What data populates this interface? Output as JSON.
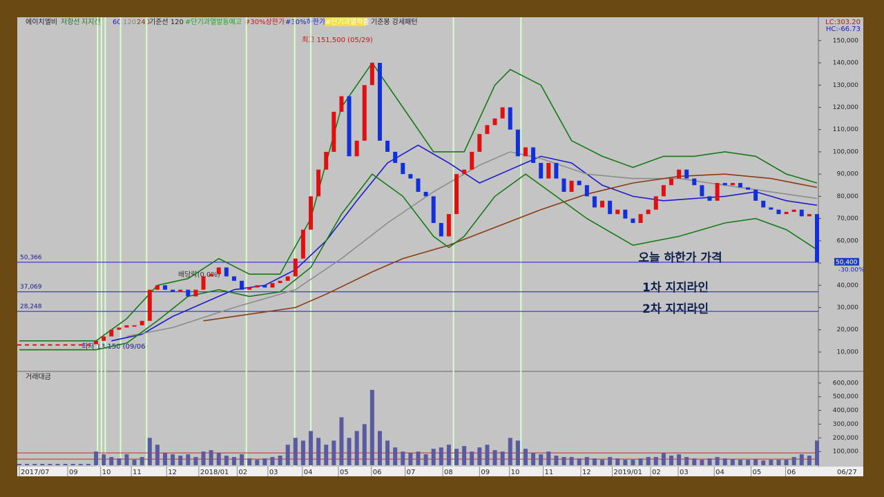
{
  "legend": [
    {
      "text": "에이치엘비",
      "color": "#222222"
    },
    {
      "text": "저항선",
      "color": "#1a7a1a"
    },
    {
      "text": "지지선",
      "color": "#1a7a1a"
    },
    {
      "text": "60",
      "color": "#1a1acc"
    },
    {
      "text": "120",
      "color": "#888888"
    },
    {
      "text": "240",
      "color": "#8b3a10"
    },
    {
      "text": "기준선 120",
      "color": "#222222"
    },
    {
      "text": "#단기과열발동예고",
      "color": "#1aaa1a"
    },
    {
      "text": "#30%상한가",
      "color": "#cc1111"
    },
    {
      "text": "#30%하한가",
      "color": "#1a1acc"
    },
    {
      "text": "#단기과열적출",
      "color": "#ffffff"
    },
    {
      "text": "기준봉 강세패턴",
      "color": "#222222"
    }
  ],
  "lc": "LC:303.20",
  "hc": "HC:-66.73",
  "annotations": {
    "high": "최고 151,500 (05/29)",
    "low": "최저 13,150 (09/06)",
    "dividend": "배당락(0.0%)",
    "today_limit": "오늘 하한가 가격",
    "support1": "1차 지지라인",
    "support2": "2차 지지라인"
  },
  "volume_title": "거래대금",
  "chart_data": [
    {
      "type": "stock",
      "x": [
        0,
        1,
        2,
        3,
        4,
        5,
        6,
        7,
        8,
        9,
        10,
        11,
        12,
        13,
        14,
        15,
        16,
        17,
        18,
        19,
        20,
        21,
        22,
        23,
        24,
        25,
        26,
        27,
        28,
        29,
        30,
        31,
        32,
        33,
        34,
        35,
        36,
        37,
        38,
        39,
        40,
        41,
        42,
        43,
        44,
        45,
        46,
        47,
        48,
        49,
        50,
        51,
        52,
        53,
        54,
        55,
        56,
        57,
        58,
        59,
        60,
        61,
        62,
        63,
        64,
        65,
        66,
        67,
        68,
        69,
        70,
        71,
        72,
        73,
        74,
        75,
        76,
        77,
        78,
        79,
        80,
        81,
        82,
        83,
        84,
        85,
        86,
        87,
        88,
        89,
        90,
        91,
        92,
        93,
        94,
        95,
        96,
        97,
        98,
        99,
        100,
        101,
        102,
        103,
        104
      ],
      "values": [
        13500,
        13500,
        13500,
        13500,
        13500,
        13500,
        13500,
        13500,
        13500,
        13500,
        15000,
        17000,
        20000,
        21000,
        22000,
        22000,
        24000,
        38000,
        40000,
        38000,
        37000,
        38000,
        35000,
        38000,
        44000,
        45000,
        48000,
        44000,
        42000,
        38000,
        39000,
        40000,
        39000,
        41000,
        42000,
        44000,
        52000,
        65000,
        80000,
        92000,
        100000,
        118000,
        125000,
        98000,
        105000,
        130000,
        140000,
        105000,
        100000,
        95000,
        90000,
        88000,
        82000,
        80000,
        68000,
        62000,
        72000,
        90000,
        92000,
        100000,
        108000,
        112000,
        115000,
        120000,
        110000,
        98000,
        102000,
        95000,
        88000,
        95000,
        88000,
        82000,
        87000,
        85000,
        80000,
        75000,
        78000,
        72000,
        74000,
        70000,
        68000,
        72000,
        74000,
        80000,
        85000,
        88000,
        92000,
        88000,
        85000,
        80000,
        78000,
        86000,
        85000,
        86000,
        84000,
        83000,
        78000,
        75000,
        74000,
        72000,
        73000,
        74000,
        71000,
        72000,
        50400
      ],
      "up_color": "#e01010",
      "down_color": "#1030e0",
      "lines": [
        {
          "name": "60",
          "color": "#1a1acc",
          "x": [
            12,
            16,
            20,
            24,
            28,
            32,
            36,
            40,
            44,
            48,
            52,
            56,
            60,
            64,
            68,
            72,
            76,
            80,
            84,
            88,
            92,
            96,
            100,
            104
          ],
          "values": [
            15000,
            18000,
            26000,
            32000,
            38000,
            40000,
            47000,
            60000,
            78000,
            95000,
            103000,
            95000,
            86000,
            92000,
            98000,
            95000,
            85000,
            80000,
            78000,
            79000,
            80000,
            82000,
            78000,
            76000
          ]
        },
        {
          "name": "120",
          "color": "#8c8c8c",
          "x": [
            14,
            20,
            28,
            36,
            42,
            48,
            54,
            60,
            64,
            68,
            74,
            80,
            86,
            92,
            98,
            104
          ],
          "values": [
            17000,
            21000,
            30000,
            38000,
            52000,
            68000,
            82000,
            94000,
            100000,
            97000,
            90000,
            88000,
            88000,
            85000,
            82000,
            79000
          ]
        },
        {
          "name": "240",
          "color": "#8b3a10",
          "x": [
            24,
            30,
            36,
            40,
            46,
            50,
            56,
            62,
            68,
            74,
            80,
            86,
            92,
            98,
            104
          ],
          "values": [
            24000,
            27000,
            30000,
            36000,
            46000,
            52000,
            58000,
            66000,
            74000,
            81000,
            86000,
            89000,
            90000,
            88000,
            84000
          ]
        },
        {
          "name": "저항선",
          "color": "#137a13",
          "x": [
            0,
            10,
            14,
            18,
            22,
            26,
            30,
            34,
            38,
            42,
            46,
            50,
            54,
            58,
            62,
            64,
            68,
            72,
            76,
            80,
            84,
            88,
            92,
            96,
            100,
            104
          ],
          "values": [
            15000,
            15000,
            25000,
            40000,
            43000,
            52000,
            45000,
            45000,
            70000,
            120000,
            140000,
            120000,
            100000,
            100000,
            130000,
            137000,
            130000,
            105000,
            98000,
            93000,
            98000,
            98000,
            100000,
            98000,
            90000,
            86000
          ]
        },
        {
          "name": "지지선",
          "color": "#137a13",
          "x": [
            0,
            10,
            14,
            18,
            22,
            26,
            30,
            34,
            38,
            42,
            46,
            50,
            54,
            56,
            58,
            62,
            66,
            70,
            74,
            80,
            86,
            92,
            96,
            100,
            104
          ],
          "values": [
            11000,
            11000,
            14000,
            24000,
            35000,
            38000,
            35000,
            37000,
            48000,
            72000,
            90000,
            80000,
            62000,
            57000,
            62000,
            80000,
            90000,
            80000,
            70000,
            58000,
            62000,
            68000,
            70000,
            65000,
            56000
          ]
        }
      ],
      "signals": [
        10.2,
        10.7,
        11.2,
        13.2,
        16.6,
        29.6,
        35.9,
        38,
        56.6,
        65.4
      ],
      "levels": [
        {
          "value": 50366,
          "label": "50,366"
        },
        {
          "value": 37069,
          "label": "37,069"
        },
        {
          "value": 28248,
          "label": "28,248"
        }
      ],
      "last_price": {
        "value": 50400,
        "label": "50,400"
      },
      "last_change": "-30.00%",
      "xlim": [
        0,
        104
      ],
      "xticks": [
        {
          "value": 0,
          "label": "2017/07"
        },
        {
          "value": 6.3,
          "label": "09"
        },
        {
          "value": 10.6,
          "label": "10"
        },
        {
          "value": 14.6,
          "label": "11"
        },
        {
          "value": 19.2,
          "label": "12"
        },
        {
          "value": 23.4,
          "label": "2018/01"
        },
        {
          "value": 28.4,
          "label": "02"
        },
        {
          "value": 32.4,
          "label": "03"
        },
        {
          "value": 36.9,
          "label": "04"
        },
        {
          "value": 41.6,
          "label": "05"
        },
        {
          "value": 45.9,
          "label": "06"
        },
        {
          "value": 50.3,
          "label": "07"
        },
        {
          "value": 55.2,
          "label": "08"
        },
        {
          "value": 60,
          "label": "09"
        },
        {
          "value": 63.9,
          "label": "10"
        },
        {
          "value": 68.3,
          "label": "11"
        },
        {
          "value": 73.2,
          "label": "12"
        },
        {
          "value": 77.3,
          "label": "2019/01"
        },
        {
          "value": 82.3,
          "label": "02"
        },
        {
          "value": 85.9,
          "label": "03"
        },
        {
          "value": 90.6,
          "label": "04"
        },
        {
          "value": 95.4,
          "label": "05"
        },
        {
          "value": 99.9,
          "label": "06"
        }
      ],
      "x_end_label": "06/27",
      "ylim": [
        1600,
        160500
      ],
      "yticks": [
        {
          "value": 10000,
          "label": "10,000"
        },
        {
          "value": 20000,
          "label": "20,000"
        },
        {
          "value": 30000,
          "label": "30,000"
        },
        {
          "value": 40000,
          "label": "40,000"
        },
        {
          "value": 50000,
          "label": "50,000"
        },
        {
          "value": 60000,
          "label": "60,000"
        },
        {
          "value": 70000,
          "label": "70,000"
        },
        {
          "value": 80000,
          "label": "80,000"
        },
        {
          "value": 90000,
          "label": "90,000"
        },
        {
          "value": 100000,
          "label": "100,000"
        },
        {
          "value": 110000,
          "label": "110,000"
        },
        {
          "value": 120000,
          "label": "120,000"
        },
        {
          "value": 130000,
          "label": "130,000"
        },
        {
          "value": 140000,
          "label": "140,000"
        },
        {
          "value": 150000,
          "label": "150,000"
        }
      ]
    },
    {
      "type": "bar",
      "color": "#5a5aa0",
      "values": [
        10000,
        10000,
        10000,
        10000,
        10000,
        10000,
        10000,
        10000,
        10000,
        10000,
        100000,
        80000,
        60000,
        50000,
        80000,
        40000,
        60000,
        200000,
        150000,
        90000,
        80000,
        70000,
        80000,
        60000,
        100000,
        110000,
        90000,
        70000,
        60000,
        80000,
        50000,
        40000,
        50000,
        60000,
        70000,
        150000,
        200000,
        180000,
        250000,
        200000,
        150000,
        180000,
        350000,
        200000,
        250000,
        300000,
        550000,
        250000,
        180000,
        130000,
        100000,
        90000,
        100000,
        80000,
        120000,
        130000,
        150000,
        120000,
        140000,
        100000,
        130000,
        150000,
        110000,
        100000,
        200000,
        180000,
        120000,
        90000,
        80000,
        100000,
        70000,
        60000,
        60000,
        50000,
        60000,
        50000,
        40000,
        60000,
        50000,
        40000,
        40000,
        50000,
        60000,
        60000,
        90000,
        70000,
        80000,
        60000,
        50000,
        40000,
        50000,
        60000,
        50000,
        45000,
        40000,
        40000,
        45000,
        35000,
        40000,
        40000,
        40000,
        60000,
        80000,
        70000,
        180000
      ],
      "ref_lines": [
        90000,
        45000
      ],
      "ref_color": "#d02020",
      "ylim": [
        0,
        670000
      ],
      "yticks": [
        {
          "value": 100000,
          "label": "100,000"
        },
        {
          "value": 200000,
          "label": "200,000"
        },
        {
          "value": 300000,
          "label": "300,000"
        },
        {
          "value": 400000,
          "label": "400,000"
        },
        {
          "value": 500000,
          "label": "500,000"
        },
        {
          "value": 600000,
          "label": "600,000"
        }
      ]
    }
  ]
}
